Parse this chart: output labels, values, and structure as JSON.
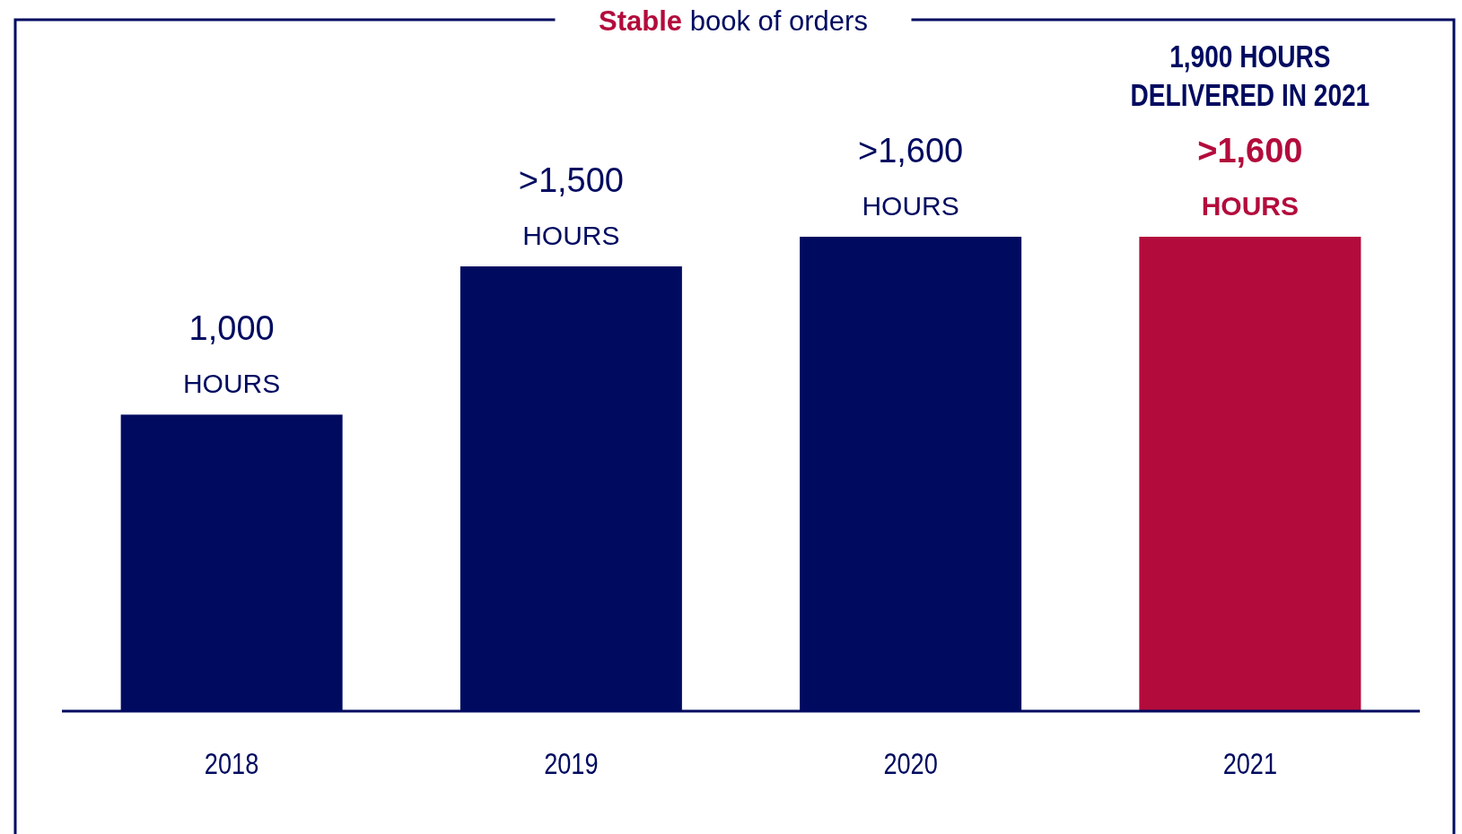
{
  "chart_data": {
    "type": "bar",
    "title": "Stable book of orders",
    "categories": [
      "2018",
      "2019",
      "2020",
      "2021"
    ],
    "values": [
      1000,
      1500,
      1600,
      1600
    ],
    "colors": [
      "#000b60",
      "#000b60",
      "#000b60",
      "#b30c3c"
    ],
    "value_labels": [
      "1,000 HOURS",
      ">1,500 HOURS",
      ">1,600 HOURS",
      ">1,600 HOURS"
    ],
    "annotations": [
      "1,900 HOURS DELIVERED IN 2021"
    ]
  }
}
